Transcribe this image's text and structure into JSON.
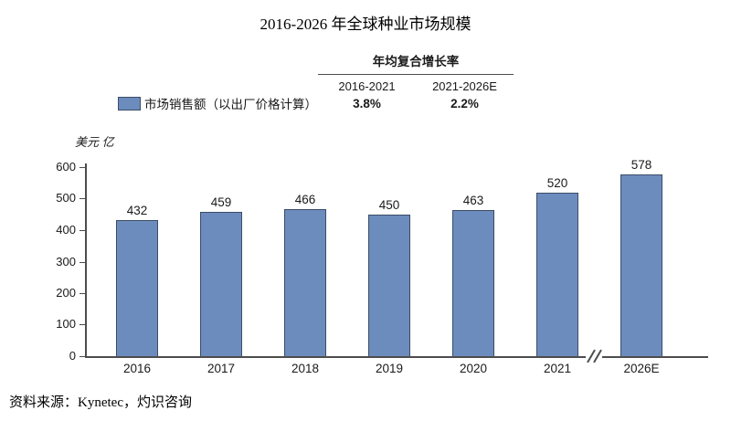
{
  "title": "2016-2026 年全球种业市场规模",
  "cagr_table": {
    "header": "年均复合增长率",
    "columns": [
      {
        "period": "2016-2021",
        "value": "3.8%"
      },
      {
        "period": "2021-2026E",
        "value": "2.2%"
      }
    ]
  },
  "legend": {
    "label": "市场销售额（以出厂价格计算）",
    "swatch_color": "#6C8CBD"
  },
  "y_axis_unit": "美元 亿",
  "source": "资料来源：Kynetec，灼识咨询",
  "colors": {
    "bar_fill": "#6C8CBD",
    "bar_border": "#3D4C66",
    "axis": "#4D4D4D",
    "text": "#1A1A1A"
  },
  "chart_data": {
    "type": "bar",
    "title": "2016-2026 年全球种业市场规模",
    "categories": [
      "2016",
      "2017",
      "2018",
      "2019",
      "2020",
      "2021",
      "2026E"
    ],
    "values": [
      432,
      459,
      466,
      450,
      463,
      520,
      578
    ],
    "series_name": "市场销售额（以出厂价格计算）",
    "xlabel": "",
    "ylabel": "美元 亿",
    "ylim": [
      0,
      600
    ],
    "yticks": [
      0,
      100,
      200,
      300,
      400,
      500,
      600
    ],
    "grid": false,
    "legend_position": "top-left",
    "axis_break_after_category": "2021",
    "annotations": {
      "cagr_2016_2021": "3.8%",
      "cagr_2021_2026E": "2.2%"
    }
  }
}
